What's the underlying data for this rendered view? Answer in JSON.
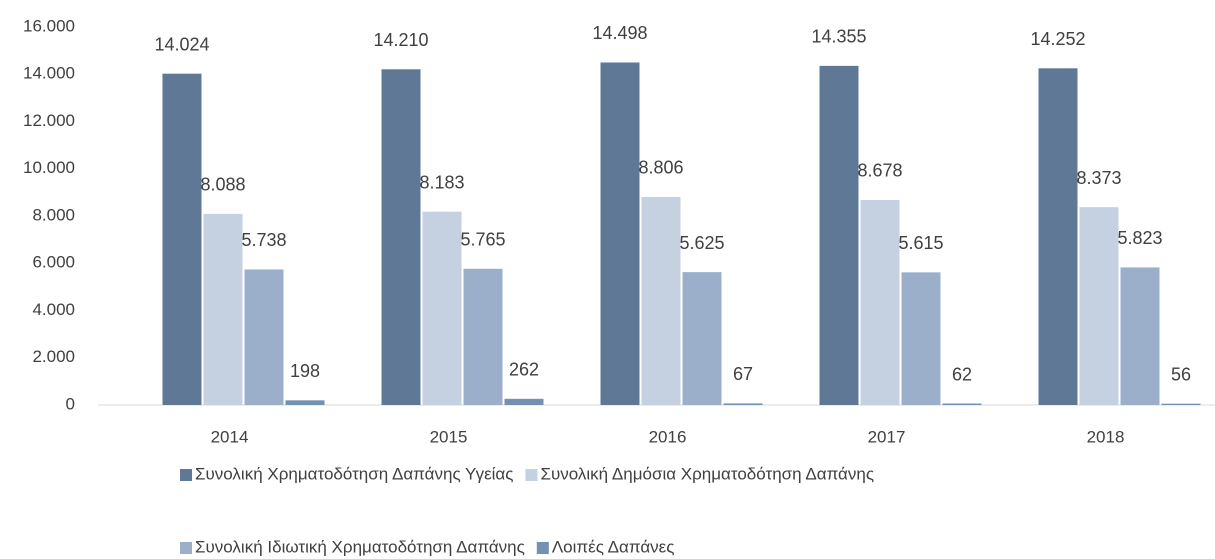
{
  "chart_data": {
    "type": "bar",
    "categories": [
      "2014",
      "2015",
      "2016",
      "2017",
      "2018"
    ],
    "series": [
      {
        "name": "Συνολική Χρηματοδότηση Δαπάνης Υγείας",
        "color": "#5f7896",
        "values": [
          14024,
          14210,
          14498,
          14355,
          14252
        ],
        "value_labels": [
          "14.024",
          "14.210",
          "14.498",
          "14.355",
          "14.252"
        ]
      },
      {
        "name": "Συνολική Δημόσια Χρηματοδότηση Δαπάνης",
        "color": "#c5d0e0",
        "values": [
          8088,
          8183,
          8806,
          8678,
          8373
        ],
        "value_labels": [
          "8.088",
          "8.183",
          "8.806",
          "8.678",
          "8.373"
        ]
      },
      {
        "name": "Συνολική Ιδιωτική Χρηματοδότηση Δαπάνης",
        "color": "#9bafcb",
        "values": [
          5738,
          5765,
          5625,
          5615,
          5823
        ],
        "value_labels": [
          "5.738",
          "5.765",
          "5.625",
          "5.615",
          "5.823"
        ]
      },
      {
        "name": "Λοιπές Δαπάνες",
        "color": "#7490b3",
        "values": [
          198,
          262,
          67,
          62,
          56
        ]
      }
    ],
    "ylim": [
      0,
      16000
    ],
    "yticks": [
      0,
      {
        "value": 2000,
        "label": "2.000"
      },
      {
        "value": 4000,
        "label": "4.000"
      },
      {
        "value": 6000,
        "label": "6.000"
      },
      {
        "value": 8000,
        "label": "8.000"
      },
      {
        "value": 10000,
        "label": "10.000"
      },
      {
        "value": 12000,
        "label": "12.000"
      },
      {
        "value": 14000,
        "label": "14.000"
      },
      {
        "value": 16000,
        "label": "16.000"
      }
    ],
    "grid": false
  }
}
